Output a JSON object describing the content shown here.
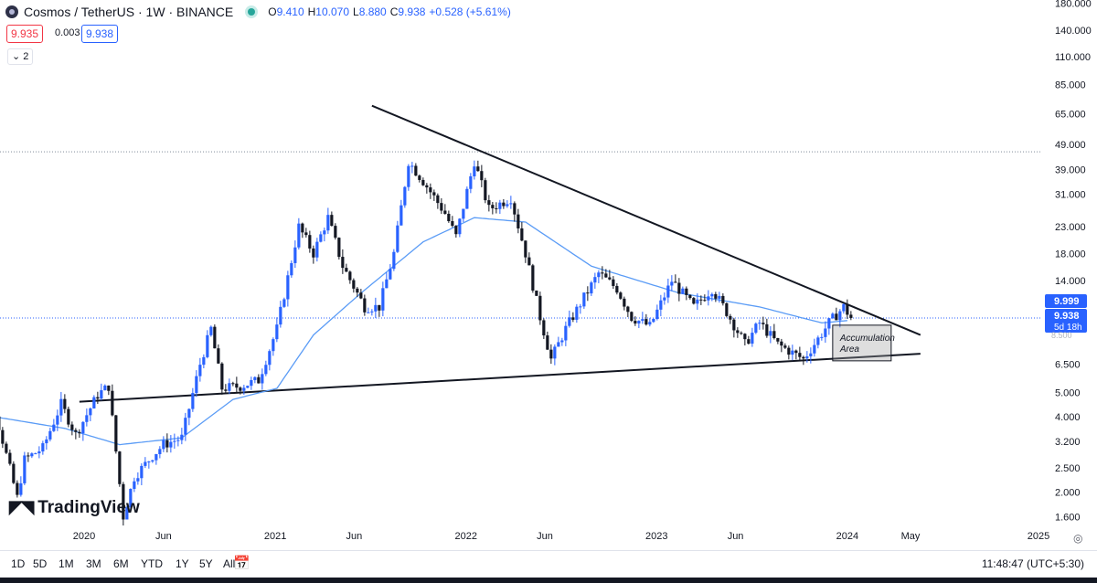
{
  "header": {
    "symbol": "Cosmos / TetherUS · 1W · BINANCE",
    "o_label": "O",
    "o": "9.410",
    "h_label": "H",
    "h": "10.070",
    "l_label": "L",
    "l": "8.880",
    "c_label": "C",
    "c": "9.938",
    "change": "+0.528 (+5.61%)"
  },
  "trade": {
    "sell": "9.935",
    "spread": "0.003",
    "buy": "9.938"
  },
  "indicators_collapsed": "2",
  "brand": "TradingView",
  "bottom_bar": {
    "ranges": [
      "1D",
      "5D",
      "1M",
      "3M",
      "6M",
      "YTD",
      "1Y",
      "5Y",
      "All"
    ],
    "clock": "11:48:47 (UTC+5:30)"
  },
  "colors": {
    "bull": "#2962ff",
    "bear": "#131722",
    "ma": "#5b9cf6",
    "accent": "#2962ff"
  },
  "chart_data": {
    "type": "candlestick",
    "scale": "log",
    "ylim": [
      1.45,
      185
    ],
    "y_ticks": [
      "180.000",
      "140.000",
      "110.000",
      "85.000",
      "65.000",
      "49.000",
      "39.000",
      "31.000",
      "23.000",
      "18.000",
      "14.000",
      "6.500",
      "5.000",
      "4.000",
      "3.200",
      "2.500",
      "2.000",
      "1.600"
    ],
    "y_tick_values": [
      180,
      140,
      110,
      85,
      65,
      49,
      39,
      31,
      23,
      18,
      14,
      6.5,
      5.0,
      4.0,
      3.2,
      2.5,
      2.0,
      1.6
    ],
    "x_ticks": [
      "2020",
      "Jun",
      "2021",
      "Jun",
      "2022",
      "Jun",
      "2023",
      "Jun",
      "2024",
      "May",
      "2025"
    ],
    "x_tick_dates": [
      "2020-01-01",
      "2020-06-01",
      "2021-01-01",
      "2021-06-01",
      "2022-01-01",
      "2022-06-01",
      "2023-01-01",
      "2023-06-01",
      "2024-01-01",
      "2024-05-01",
      "2025-01-01"
    ],
    "price_labels": {
      "high": "9.999",
      "last": "9.938",
      "countdown": "5d 18h"
    },
    "price_line_levels": {
      "ath": 45.8,
      "last": 9.938
    },
    "anchors": [
      [
        "2019-05-20",
        4.4
      ],
      [
        "2019-06-24",
        7.0
      ],
      [
        "2019-07-15",
        4.2
      ],
      [
        "2019-08-26",
        1.9
      ],
      [
        "2019-09-09",
        2.7
      ],
      [
        "2019-10-14",
        3.0
      ],
      [
        "2019-11-18",
        4.5
      ],
      [
        "2019-12-16",
        3.4
      ],
      [
        "2020-01-27",
        4.9
      ],
      [
        "2020-02-17",
        5.3
      ],
      [
        "2020-03-16",
        1.6
      ],
      [
        "2020-04-06",
        2.3
      ],
      [
        "2020-05-11",
        2.8
      ],
      [
        "2020-06-01",
        3.1
      ],
      [
        "2020-07-06",
        3.3
      ],
      [
        "2020-08-10",
        6.5
      ],
      [
        "2020-08-31",
        9.0
      ],
      [
        "2020-09-21",
        5.2
      ],
      [
        "2020-10-26",
        5.3
      ],
      [
        "2020-11-30",
        5.6
      ],
      [
        "2021-01-04",
        9.0
      ],
      [
        "2021-02-15",
        23.0
      ],
      [
        "2021-03-15",
        18.0
      ],
      [
        "2021-04-12",
        25.0
      ],
      [
        "2021-05-10",
        16.0
      ],
      [
        "2021-06-21",
        11.0
      ],
      [
        "2021-07-19",
        11.0
      ],
      [
        "2021-08-16",
        18.0
      ],
      [
        "2021-09-13",
        42.0
      ],
      [
        "2021-10-11",
        35.0
      ],
      [
        "2021-11-22",
        26.0
      ],
      [
        "2021-12-13",
        21.0
      ],
      [
        "2022-01-17",
        42.0
      ],
      [
        "2022-02-14",
        27.0
      ],
      [
        "2022-03-28",
        30.0
      ],
      [
        "2022-04-25",
        18.0
      ],
      [
        "2022-05-23",
        10.0
      ],
      [
        "2022-06-13",
        6.8
      ],
      [
        "2022-07-11",
        9.0
      ],
      [
        "2022-08-15",
        12.0
      ],
      [
        "2022-09-12",
        15.0
      ],
      [
        "2022-10-17",
        13.0
      ],
      [
        "2022-11-14",
        10.0
      ],
      [
        "2022-12-19",
        9.2
      ],
      [
        "2023-01-30",
        14.0
      ],
      [
        "2023-03-13",
        11.0
      ],
      [
        "2023-04-17",
        13.0
      ],
      [
        "2023-05-15",
        10.5
      ],
      [
        "2023-06-19",
        7.8
      ],
      [
        "2023-07-17",
        9.5
      ],
      [
        "2023-08-21",
        7.8
      ],
      [
        "2023-10-09",
        6.8
      ],
      [
        "2023-11-06",
        8.2
      ],
      [
        "2023-11-27",
        9.5
      ],
      [
        "2023-12-25",
        11.0
      ],
      [
        "2024-01-08",
        9.938
      ]
    ],
    "ma_anchors": [
      [
        "2019-07-15",
        4.0
      ],
      [
        "2019-11-25",
        3.6
      ],
      [
        "2020-03-09",
        3.1
      ],
      [
        "2020-07-06",
        3.3
      ],
      [
        "2020-10-12",
        4.7
      ],
      [
        "2021-01-04",
        5.2
      ],
      [
        "2021-03-15",
        8.5
      ],
      [
        "2021-06-14",
        12.5
      ],
      [
        "2021-10-11",
        20.0
      ],
      [
        "2022-01-17",
        25.0
      ],
      [
        "2022-04-25",
        24.0
      ],
      [
        "2022-08-29",
        16.0
      ],
      [
        "2023-02-13",
        12.5
      ],
      [
        "2023-07-17",
        11.0
      ],
      [
        "2023-11-13",
        9.5
      ],
      [
        "2024-01-01",
        9.7
      ]
    ],
    "trendlines": [
      {
        "name": "upper",
        "from": [
          "2021-07-05",
          70.0
        ],
        "to": [
          "2024-05-20",
          8.5
        ]
      },
      {
        "name": "lower",
        "from": [
          "2019-12-23",
          4.6
        ],
        "to": [
          "2024-05-20",
          7.15
        ]
      }
    ],
    "annotation": {
      "text_line1": "Accumulation",
      "text_line2": "Area",
      "from": [
        "2023-12-04",
        9.3
      ],
      "to": [
        "2024-03-25",
        6.7
      ]
    }
  }
}
